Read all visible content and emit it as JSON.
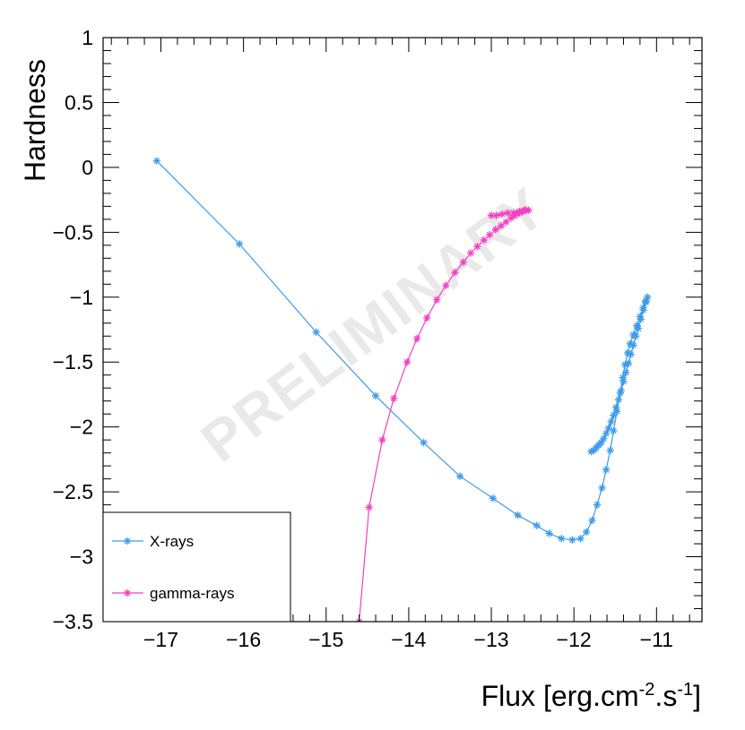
{
  "chart_data": {
    "type": "line",
    "title": "",
    "xlabel": "Flux [erg.cm",
    "xlabel_sup1": "-2",
    "xlabel_mid": ".s",
    "xlabel_sup2": "-1",
    "xlabel_end": "]",
    "ylabel": "Hardness",
    "xlim": [
      -17.7,
      -10.45
    ],
    "ylim": [
      -3.5,
      1
    ],
    "xticks": [
      -17,
      -16,
      -15,
      -14,
      -13,
      -12,
      -11
    ],
    "xtick_labels": [
      "−17",
      "−16",
      "−15",
      "−14",
      "−13",
      "−12",
      "−11"
    ],
    "yticks": [
      1,
      0.5,
      0,
      -0.5,
      -1,
      -1.5,
      -2,
      -2.5,
      -3,
      -3.5
    ],
    "ytick_labels": [
      "1",
      "0.5",
      "0",
      "−0.5",
      "−1",
      "−1.5",
      "−2",
      "−2.5",
      "−3",
      "−3.5"
    ],
    "watermark": "PRELIMINARY",
    "legend_position": "bottom-left",
    "series": [
      {
        "name": "X-rays",
        "color": "#3d9be9",
        "marker": "asterisk",
        "points": [
          [
            -17.05,
            0.05
          ],
          [
            -16.05,
            -0.59
          ],
          [
            -15.12,
            -1.27
          ],
          [
            -14.4,
            -1.76
          ],
          [
            -13.82,
            -2.12
          ],
          [
            -13.38,
            -2.38
          ],
          [
            -12.98,
            -2.55
          ],
          [
            -12.68,
            -2.68
          ],
          [
            -12.45,
            -2.76
          ],
          [
            -12.3,
            -2.82
          ],
          [
            -12.15,
            -2.86
          ],
          [
            -12.02,
            -2.87
          ],
          [
            -11.92,
            -2.86
          ],
          [
            -11.85,
            -2.81
          ],
          [
            -11.78,
            -2.72
          ],
          [
            -11.72,
            -2.6
          ],
          [
            -11.66,
            -2.47
          ],
          [
            -11.61,
            -2.33
          ],
          [
            -11.56,
            -2.18
          ],
          [
            -11.52,
            -2.03
          ],
          [
            -11.48,
            -1.88
          ],
          [
            -11.44,
            -1.74
          ],
          [
            -11.41,
            -1.62
          ],
          [
            -11.38,
            -1.52
          ],
          [
            -11.35,
            -1.43
          ],
          [
            -11.32,
            -1.36
          ],
          [
            -11.28,
            -1.29
          ],
          [
            -11.24,
            -1.22
          ],
          [
            -11.2,
            -1.15
          ],
          [
            -11.16,
            -1.08
          ],
          [
            -11.13,
            -1.03
          ],
          [
            -11.11,
            -1.0
          ],
          [
            -11.13,
            -1.04
          ],
          [
            -11.16,
            -1.1
          ],
          [
            -11.19,
            -1.17
          ],
          [
            -11.22,
            -1.24
          ],
          [
            -11.25,
            -1.3
          ],
          [
            -11.28,
            -1.37
          ],
          [
            -11.31,
            -1.44
          ],
          [
            -11.34,
            -1.51
          ],
          [
            -11.37,
            -1.58
          ],
          [
            -11.4,
            -1.65
          ],
          [
            -11.43,
            -1.72
          ],
          [
            -11.46,
            -1.79
          ],
          [
            -11.49,
            -1.85
          ],
          [
            -11.52,
            -1.91
          ],
          [
            -11.55,
            -1.96
          ],
          [
            -11.58,
            -2.01
          ],
          [
            -11.61,
            -2.05
          ],
          [
            -11.64,
            -2.09
          ],
          [
            -11.67,
            -2.12
          ],
          [
            -11.7,
            -2.14
          ],
          [
            -11.73,
            -2.16
          ],
          [
            -11.76,
            -2.18
          ],
          [
            -11.79,
            -2.19
          ]
        ]
      },
      {
        "name": "gamma-rays",
        "color": "#f23fc3",
        "marker": "asterisk",
        "points": [
          [
            -14.6,
            -3.5
          ],
          [
            -14.48,
            -2.62
          ],
          [
            -14.32,
            -2.1
          ],
          [
            -14.18,
            -1.78
          ],
          [
            -14.02,
            -1.5
          ],
          [
            -13.9,
            -1.32
          ],
          [
            -13.78,
            -1.16
          ],
          [
            -13.66,
            -1.02
          ],
          [
            -13.55,
            -0.91
          ],
          [
            -13.44,
            -0.81
          ],
          [
            -13.34,
            -0.73
          ],
          [
            -13.25,
            -0.66
          ],
          [
            -13.17,
            -0.61
          ],
          [
            -13.09,
            -0.56
          ],
          [
            -13.02,
            -0.52
          ],
          [
            -12.95,
            -0.48
          ],
          [
            -12.88,
            -0.45
          ],
          [
            -12.82,
            -0.42
          ],
          [
            -12.76,
            -0.39
          ],
          [
            -12.71,
            -0.37
          ],
          [
            -12.66,
            -0.35
          ],
          [
            -12.62,
            -0.34
          ],
          [
            -12.58,
            -0.33
          ],
          [
            -12.55,
            -0.33
          ],
          [
            -12.6,
            -0.33
          ],
          [
            -12.66,
            -0.34
          ],
          [
            -12.73,
            -0.35
          ],
          [
            -12.8,
            -0.35
          ],
          [
            -12.87,
            -0.36
          ],
          [
            -12.94,
            -0.37
          ],
          [
            -13.0,
            -0.37
          ]
        ]
      }
    ]
  }
}
